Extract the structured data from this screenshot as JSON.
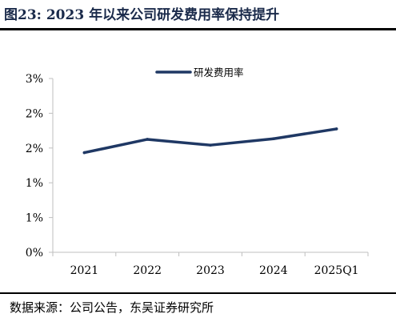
{
  "header": {
    "title": "图23:  2023 年以来公司研发费用率保持提升"
  },
  "footer": {
    "source": "数据来源：公司公告，东吴证券研究所"
  },
  "colors": {
    "series_line": "#1f3864",
    "axis": "#bfbfbf",
    "rule": "#000000"
  },
  "chart_data": {
    "type": "line",
    "title": "",
    "xlabel": "",
    "ylabel": "",
    "categories": [
      "2021",
      "2022",
      "2023",
      "2024",
      "2025Q1"
    ],
    "y_tick_labels": [
      "0%",
      "1%",
      "1%",
      "2%",
      "2%",
      "3%"
    ],
    "ylim": [
      0,
      0.03
    ],
    "grid": false,
    "legend": "top",
    "series": [
      {
        "name": "研发费用率",
        "values": [
          0.0172,
          0.0195,
          0.0185,
          0.0196,
          0.0213
        ]
      }
    ]
  }
}
